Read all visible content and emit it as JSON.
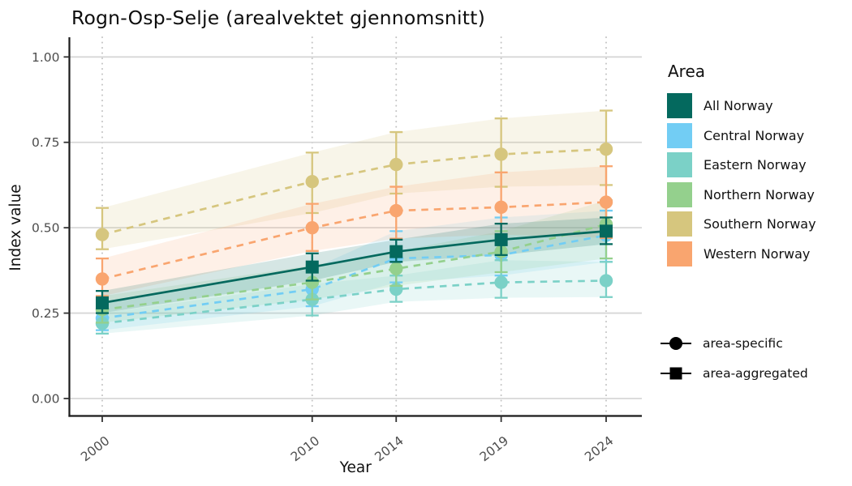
{
  "chart_data": {
    "type": "line",
    "title": "Rogn-Osp-Selje (arealvektet gjennomsnitt)",
    "xlabel": "Year",
    "ylabel": "Index value",
    "legend_title": "Area",
    "x": [
      2000,
      2010,
      2014,
      2019,
      2024
    ],
    "x_tick_labels": [
      "2000",
      "2010",
      "2014",
      "2019",
      "2024"
    ],
    "y_ticks": [
      0,
      0.25,
      0.5,
      0.75,
      1
    ],
    "y_tick_labels": [
      "0.00",
      "0.25",
      "0.50",
      "0.75",
      "1.00"
    ],
    "ylim": [
      0,
      1
    ],
    "grid": {
      "horizontal": "solid",
      "vertical": "dotted"
    },
    "legend_position": "right",
    "series": [
      {
        "name": "All Norway",
        "key": "all-norway",
        "color": "#04695e",
        "line": "solid",
        "marker": "square",
        "group": "area-aggregated",
        "values": [
          0.28,
          0.385,
          0.43,
          0.465,
          0.49
        ],
        "lower": [
          0.25,
          0.345,
          0.4,
          0.42,
          0.452
        ],
        "upper": [
          0.315,
          0.425,
          0.465,
          0.512,
          0.53
        ]
      },
      {
        "name": "Central Norway",
        "key": "central-norway",
        "color": "#72cdf4",
        "line": "dashed",
        "marker": "circle",
        "group": "area-specific",
        "values": [
          0.235,
          0.32,
          0.41,
          0.42,
          0.478
        ],
        "lower": [
          0.2,
          0.27,
          0.34,
          0.36,
          0.4
        ],
        "upper": [
          0.28,
          0.38,
          0.49,
          0.53,
          0.55
        ]
      },
      {
        "name": "Eastern Norway",
        "key": "eastern-norway",
        "color": "#7bd1c7",
        "line": "dashed",
        "marker": "circle",
        "group": "area-specific",
        "values": [
          0.22,
          0.29,
          0.32,
          0.34,
          0.345
        ],
        "lower": [
          0.19,
          0.243,
          0.283,
          0.295,
          0.297
        ],
        "upper": [
          0.25,
          0.335,
          0.36,
          0.405,
          0.4
        ]
      },
      {
        "name": "Northern Norway",
        "key": "northern-norway",
        "color": "#94d08d",
        "line": "dashed",
        "marker": "circle",
        "group": "area-specific",
        "values": [
          0.26,
          0.34,
          0.38,
          0.43,
          0.51
        ],
        "lower": [
          0.222,
          0.29,
          0.33,
          0.37,
          0.41
        ],
        "upper": [
          0.3,
          0.39,
          0.43,
          0.49,
          0.58
        ]
      },
      {
        "name": "Southern Norway",
        "key": "southern-norway",
        "color": "#d6c67e",
        "line": "dashed",
        "marker": "circle",
        "group": "area-specific",
        "values": [
          0.48,
          0.635,
          0.685,
          0.715,
          0.73
        ],
        "lower": [
          0.437,
          0.543,
          0.6,
          0.62,
          0.625
        ],
        "upper": [
          0.558,
          0.72,
          0.78,
          0.82,
          0.843
        ]
      },
      {
        "name": "Western Norway",
        "key": "western-norway",
        "color": "#f9a56f",
        "line": "dashed",
        "marker": "circle",
        "group": "area-specific",
        "values": [
          0.35,
          0.5,
          0.55,
          0.56,
          0.575
        ],
        "lower": [
          0.3,
          0.432,
          0.468,
          0.48,
          0.47
        ],
        "upper": [
          0.41,
          0.57,
          0.62,
          0.662,
          0.68
        ]
      }
    ],
    "marker_legend": [
      {
        "label": "area-specific",
        "marker": "circle"
      },
      {
        "label": "area-aggregated",
        "marker": "square"
      }
    ]
  }
}
